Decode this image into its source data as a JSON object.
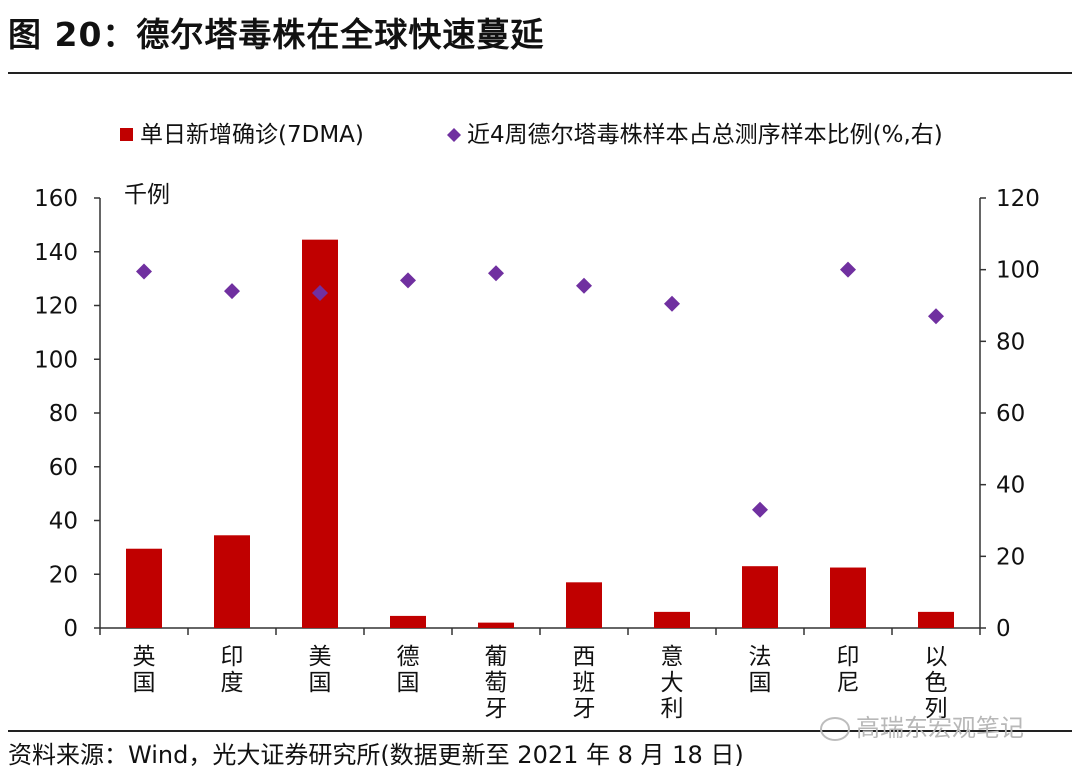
{
  "figure_title": "图 20：德尔塔毒株在全球快速蔓延",
  "source_note": "资料来源：Wind，光大证券研究所(数据更新至 2021 年 8 月 18 日)",
  "watermark_text": "高瑞东宏观笔记",
  "colors": {
    "bar": "#C00000",
    "diamond": "#7030A0",
    "axis": "#333333"
  },
  "chart_data": {
    "type": "bar",
    "categories": [
      "英国",
      "印度",
      "美国",
      "德国",
      "葡萄牙",
      "西班牙",
      "意大利",
      "法国",
      "印尼",
      "以色列"
    ],
    "y_left_unit": "千例",
    "ylim_left": [
      0,
      160
    ],
    "yticks_left": [
      "0",
      "20",
      "40",
      "60",
      "80",
      "100",
      "120",
      "140",
      "160"
    ],
    "ylim_right": [
      0,
      120
    ],
    "yticks_right": [
      "0",
      "20",
      "40",
      "60",
      "80",
      "100",
      "120"
    ],
    "grid": false,
    "legend_position": "top",
    "series": [
      {
        "name": "单日新增确诊(7DMA)",
        "type": "bar",
        "axis": "left",
        "values": [
          29.5,
          34.5,
          144.5,
          4.5,
          2.0,
          17.0,
          6.0,
          23.0,
          22.5,
          6.0
        ]
      },
      {
        "name": "近4周德尔塔毒株样本占总测序样本比例(%,右)",
        "type": "scatter",
        "axis": "right",
        "values": [
          99.5,
          94.0,
          93.5,
          97.0,
          99.0,
          95.5,
          90.5,
          33.0,
          100.0,
          87.0
        ]
      }
    ]
  }
}
